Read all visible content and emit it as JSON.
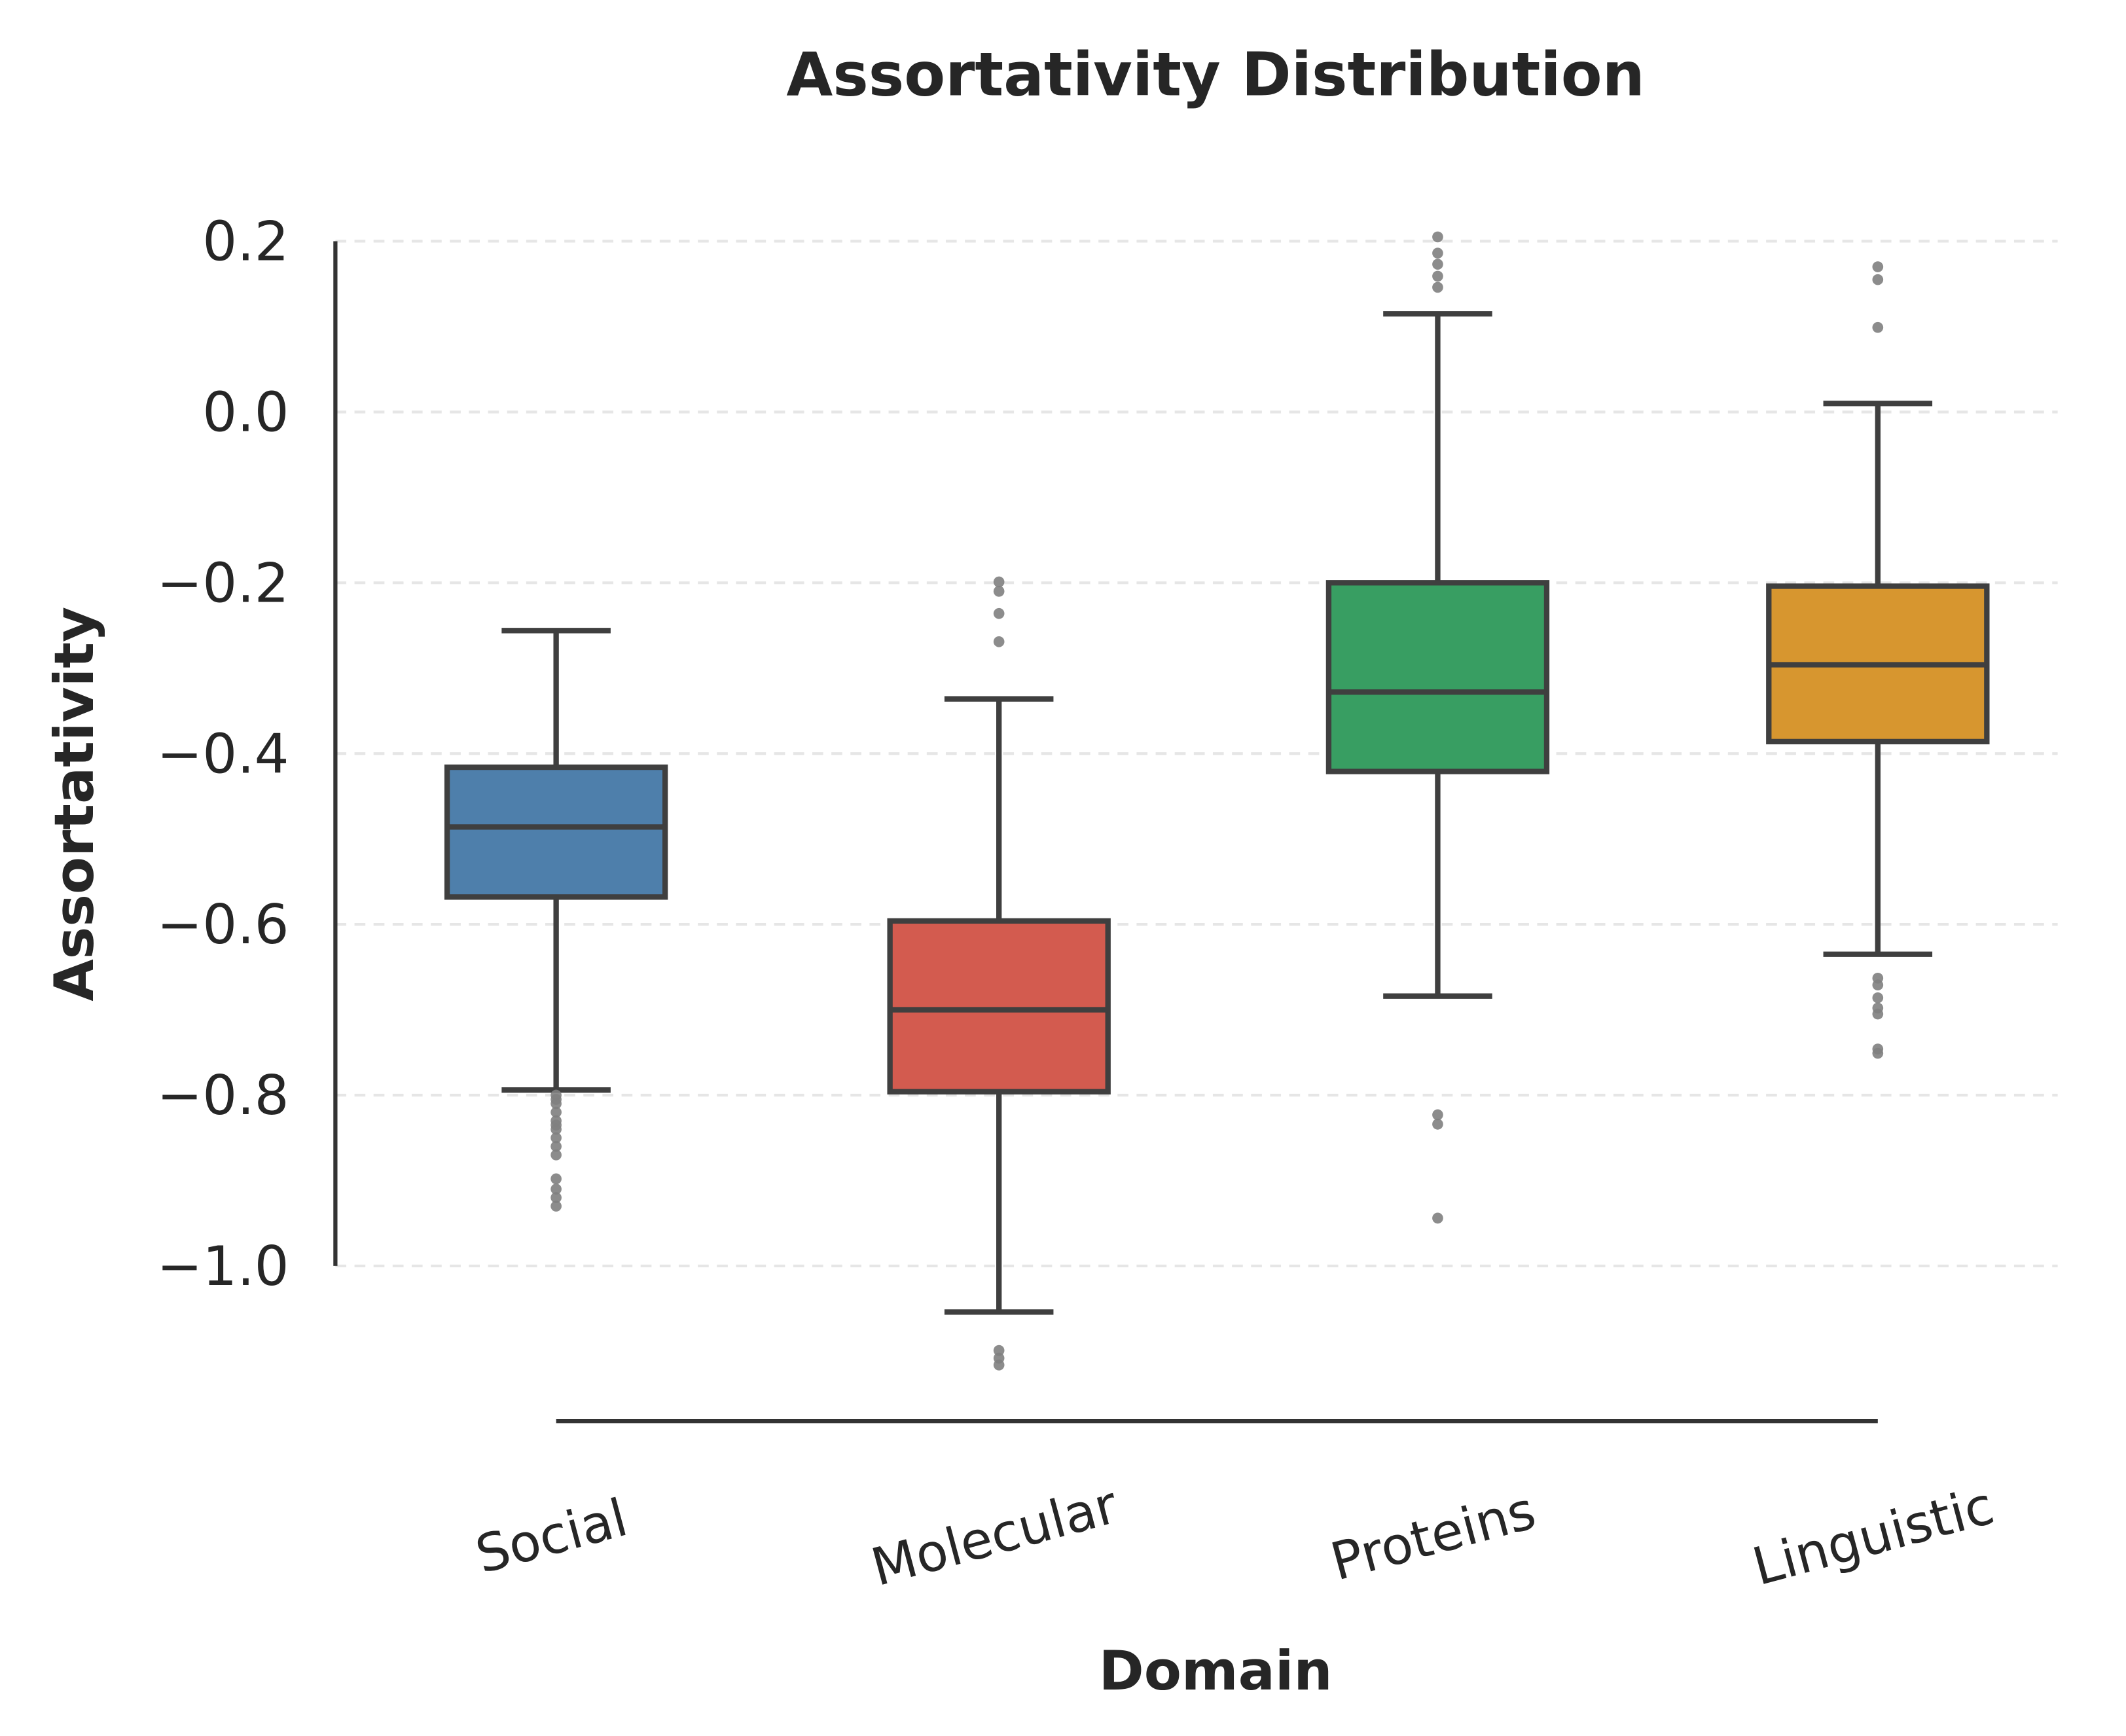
{
  "chart_data": {
    "type": "box",
    "title": "Assortativity Distribution",
    "xlabel": "Domain",
    "ylabel": "Assortativity",
    "ylim": [
      -1.16,
      0.22
    ],
    "yticks": [
      "0.2",
      "0.0",
      "−0.2",
      "−0.4",
      "−0.6",
      "−0.8",
      "−1.0"
    ],
    "ytick_values": [
      0.2,
      0.0,
      -0.2,
      -0.4,
      -0.6,
      -0.8,
      -1.0
    ],
    "grid": "y, dashed",
    "categories": [
      "Social",
      "Molecular",
      "Proteins",
      "Linguistic"
    ],
    "series": [
      {
        "category": "Social",
        "color": "#4e7fab",
        "whisker_low": -0.794,
        "q1": -0.568,
        "median": -0.486,
        "q3": -0.416,
        "whisker_high": -0.256,
        "outliers": [
          -0.8,
          -0.805,
          -0.81,
          -0.82,
          -0.83,
          -0.835,
          -0.84,
          -0.85,
          -0.86,
          -0.87,
          -0.898,
          -0.91,
          -0.92,
          -0.93
        ]
      },
      {
        "category": "Molecular",
        "color": "#d35b4f",
        "whisker_low": -1.054,
        "q1": -0.796,
        "median": -0.7,
        "q3": -0.596,
        "whisker_high": -0.336,
        "outliers": [
          -0.199,
          -0.21,
          -0.236,
          -0.269,
          -1.099,
          -1.108,
          -1.116
        ]
      },
      {
        "category": "Proteins",
        "color": "#389e62",
        "whisker_low": -0.684,
        "q1": -0.421,
        "median": -0.328,
        "q3": -0.2,
        "whisker_high": 0.115,
        "outliers": [
          0.205,
          0.186,
          0.173,
          0.159,
          0.146,
          -0.823,
          -0.834,
          -0.944
        ]
      },
      {
        "category": "Linguistic",
        "color": "#d7962f",
        "whisker_low": -0.635,
        "q1": -0.386,
        "median": -0.296,
        "q3": -0.204,
        "whisker_high": 0.01,
        "outliers": [
          0.17,
          0.155,
          0.099,
          -0.663,
          -0.671,
          -0.686,
          -0.698,
          -0.705,
          -0.746,
          -0.751
        ]
      }
    ]
  }
}
